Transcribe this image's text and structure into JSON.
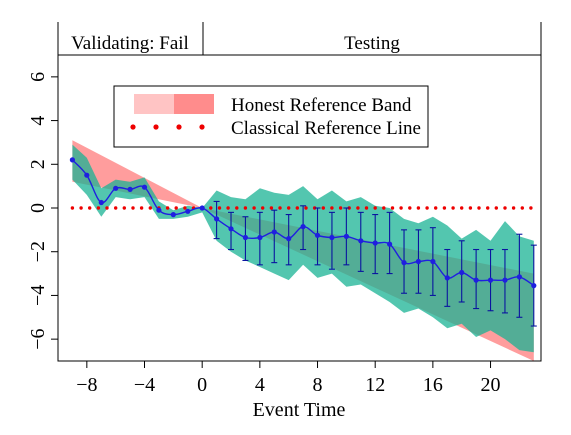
{
  "chart_data": {
    "type": "line",
    "panel_labels": {
      "validating": "Validating: Fail",
      "testing": "Testing"
    },
    "xlabel": "Event Time",
    "ylabel": "",
    "xlim": [
      -10,
      23.5
    ],
    "ylim": [
      -7,
      7
    ],
    "x_ticks": [
      -8,
      -4,
      0,
      4,
      8,
      12,
      16,
      20
    ],
    "x_tick_labels": [
      "−8",
      "−4",
      "0",
      "4",
      "8",
      "12",
      "16",
      "20"
    ],
    "y_ticks": [
      6,
      4,
      2,
      0,
      -2,
      -4,
      -6
    ],
    "y_tick_labels": [
      "6",
      "4",
      "2",
      "0",
      "−2",
      "−4",
      "−6"
    ],
    "grid": false,
    "legend": {
      "placement": "top-center",
      "entries": [
        {
          "label": "Honest Reference Band",
          "colors": [
            "#ffc4c4",
            "#ff8c8c"
          ]
        },
        {
          "label": "Classical Reference Line",
          "color": "#ee0000"
        }
      ]
    },
    "colors": {
      "estimate_line": "#1f1fe0",
      "error_bars": "#0a14a0",
      "confidence_band": "#1ab394",
      "honest_band": "#ff7373",
      "classical_line": "#ee0000"
    },
    "honest_reference_band": {
      "x": [
        -9,
        0,
        23
      ],
      "upper": [
        3.1,
        0,
        -3.0
      ],
      "lower": [
        1.2,
        0,
        -7.0
      ]
    },
    "confidence_band": {
      "x": [
        -9,
        -8,
        -7,
        -6,
        -5,
        -4,
        -3,
        -2,
        -1,
        0,
        1,
        2,
        3,
        4,
        5,
        6,
        7,
        8,
        9,
        10,
        11,
        12,
        13,
        14,
        15,
        16,
        17,
        18,
        19,
        20,
        21,
        22,
        23
      ],
      "upper": [
        2.9,
        2.3,
        0.9,
        1.3,
        1.2,
        1.4,
        0.3,
        -0.1,
        0.1,
        0.0,
        0.8,
        0.5,
        0.4,
        0.9,
        0.7,
        0.6,
        1.0,
        0.4,
        0.8,
        0.3,
        0.5,
        0.1,
        0.0,
        -0.5,
        -0.7,
        -0.4,
        -0.8,
        -1.4,
        -1.0,
        -1.5,
        -0.6,
        -1.3,
        -1.5
      ],
      "lower": [
        1.3,
        0.6,
        -0.4,
        0.5,
        0.4,
        0.5,
        -0.5,
        -0.5,
        -0.4,
        -0.2,
        -1.5,
        -2.0,
        -2.4,
        -2.7,
        -3.0,
        -3.3,
        -2.6,
        -3.2,
        -3.0,
        -3.6,
        -3.5,
        -3.9,
        -4.3,
        -4.8,
        -4.6,
        -5.0,
        -5.5,
        -5.3,
        -5.9,
        -5.6,
        -6.0,
        -6.5,
        -6.6
      ]
    },
    "estimate": {
      "x": [
        -9,
        -8,
        -7,
        -6,
        -5,
        -4,
        -3,
        -2,
        -1,
        0,
        1,
        2,
        3,
        4,
        5,
        6,
        7,
        8,
        9,
        10,
        11,
        12,
        13,
        14,
        15,
        16,
        17,
        18,
        19,
        20,
        21,
        22,
        23
      ],
      "y": [
        2.2,
        1.5,
        0.25,
        0.9,
        0.85,
        0.95,
        -0.1,
        -0.3,
        -0.15,
        0.0,
        -0.5,
        -0.95,
        -1.35,
        -1.35,
        -1.1,
        -1.4,
        -0.85,
        -1.25,
        -1.35,
        -1.3,
        -1.5,
        -1.6,
        -1.65,
        -2.5,
        -2.45,
        -2.45,
        -3.2,
        -2.95,
        -3.3,
        -3.3,
        -3.3,
        -3.15,
        -3.55
      ]
    },
    "error_bars": {
      "x": [
        1,
        2,
        3,
        4,
        5,
        6,
        7,
        8,
        9,
        10,
        11,
        12,
        13,
        14,
        15,
        16,
        17,
        18,
        19,
        20,
        21,
        22,
        23
      ],
      "upper": [
        0.3,
        -0.2,
        -0.4,
        -0.2,
        -0.1,
        -0.3,
        0.1,
        0.0,
        -0.2,
        0.0,
        -0.2,
        -0.3,
        -0.2,
        -1.0,
        -1.0,
        -0.9,
        -1.9,
        -1.5,
        -1.9,
        -1.9,
        -1.9,
        -1.2,
        -1.7
      ],
      "lower": [
        -1.4,
        -1.9,
        -2.4,
        -2.6,
        -2.5,
        -2.6,
        -1.9,
        -2.6,
        -2.8,
        -2.6,
        -2.9,
        -3.0,
        -3.0,
        -3.9,
        -3.9,
        -4.0,
        -4.5,
        -4.3,
        -4.6,
        -4.7,
        -4.8,
        -5.0,
        -5.4
      ]
    },
    "classical_reference_line": {
      "y": 0,
      "x_range": [
        -9,
        23
      ]
    }
  }
}
